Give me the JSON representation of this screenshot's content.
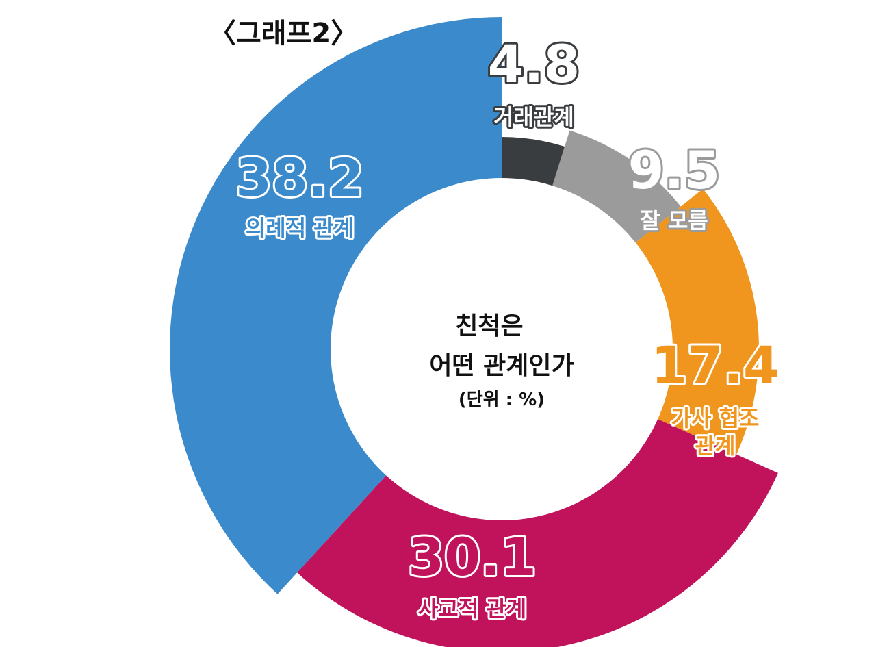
{
  "graph_tag": "〈그래프2〉",
  "center": {
    "line1": "친척은",
    "line2": "어떤 관계인가",
    "unit": "(단위 : %)"
  },
  "colors": {
    "거래관계": "#3a3d40",
    "잘 모름": "#9b9b9b",
    "가사 협조 관계": "#f0961e",
    "사교적 관계": "#c0135b",
    "의례적 관계": "#3b8bcc"
  },
  "chart_data": {
    "type": "pie",
    "variant": "donut, radius scaled by value",
    "title": "",
    "unit": "%",
    "slices": [
      {
        "label": "거래관계",
        "value": 4.8,
        "value_label": "4.8",
        "color": "#3a3d40"
      },
      {
        "label": "잘 모름",
        "value": 9.5,
        "value_label": "9.5",
        "color": "#9b9b9b"
      },
      {
        "label": "가사 협조 관계",
        "label_lines": [
          "가사 협조",
          "관계"
        ],
        "value": 17.4,
        "value_label": "17.4",
        "color": "#f0961e"
      },
      {
        "label": "사교적 관계",
        "value": 30.1,
        "value_label": "30.1",
        "color": "#c0135b"
      },
      {
        "label": "의례적 관계",
        "value": 38.2,
        "value_label": "38.2",
        "color": "#3b8bcc"
      }
    ]
  }
}
